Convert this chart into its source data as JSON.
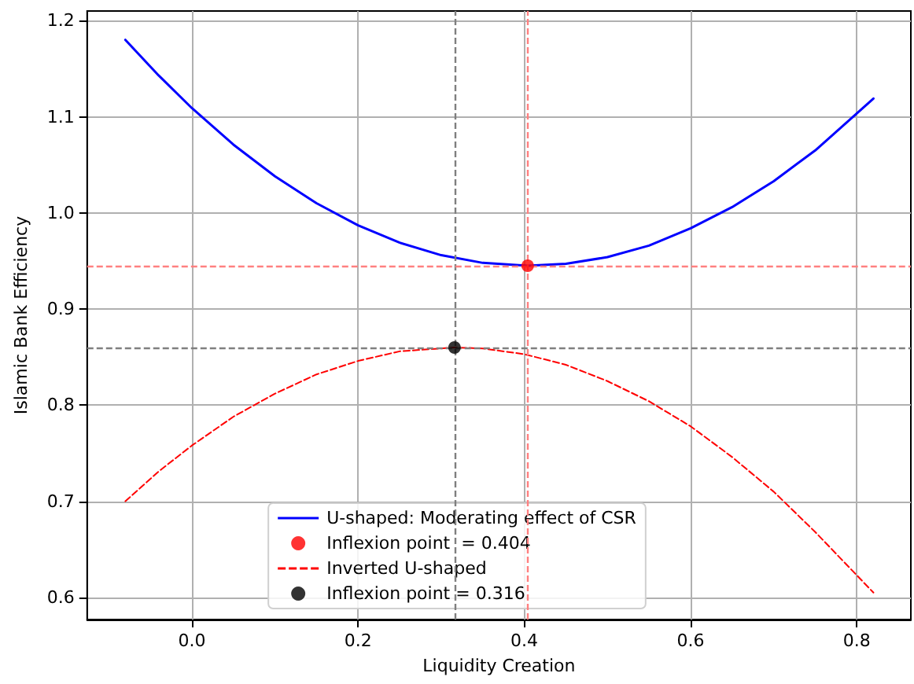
{
  "chart_data": {
    "type": "line",
    "xlabel": "Liquidity Creation",
    "ylabel": "Islamic Bank Efficiency",
    "xlim": [
      -0.126,
      0.865
    ],
    "ylim": [
      0.577,
      1.21
    ],
    "xticks": [
      {
        "value": 0,
        "label": "0.0"
      },
      {
        "value": 0.2,
        "label": "0.2"
      },
      {
        "value": 0.4,
        "label": "0.4"
      },
      {
        "value": 0.6,
        "label": "0.6"
      },
      {
        "value": 0.8,
        "label": "0.8"
      }
    ],
    "yticks": [
      {
        "value": 0.6,
        "label": "0.6"
      },
      {
        "value": 0.7,
        "label": "0.7"
      },
      {
        "value": 0.8,
        "label": "0.8"
      },
      {
        "value": 0.9,
        "label": "0.9"
      },
      {
        "value": 1.0,
        "label": "1.0"
      },
      {
        "value": 1.1,
        "label": "1.1"
      },
      {
        "value": 1.2,
        "label": "1.2"
      }
    ],
    "grid": true,
    "legend": "bottom",
    "series": [
      {
        "name": "U-shaped: Moderating effect of CSR",
        "type": "line",
        "color": "#0000ff",
        "line_style": "solid",
        "marker": "none",
        "x": [
          -0.08,
          -0.04,
          0,
          0.05,
          0.1,
          0.15,
          0.2,
          0.25,
          0.3,
          0.35,
          0.404,
          0.45,
          0.5,
          0.55,
          0.6,
          0.65,
          0.7,
          0.75,
          0.82
        ],
        "values": [
          1.18,
          1.143,
          1.109,
          1.071,
          1.038,
          1.01,
          0.987,
          0.969,
          0.956,
          0.948,
          0.945,
          0.947,
          0.954,
          0.966,
          0.984,
          1.006,
          1.033,
          1.065,
          1.119
        ]
      },
      {
        "name": "Inflexion point  = 0.404",
        "type": "scatter",
        "color": "#ff0000",
        "marker": "circle",
        "x": [
          0.404
        ],
        "values": [
          0.945
        ]
      },
      {
        "name": "Inverted U-shaped",
        "type": "line",
        "color": "#ff0000",
        "line_style": "dashed",
        "marker": "none",
        "x": [
          -0.08,
          -0.04,
          0,
          0.05,
          0.1,
          0.15,
          0.2,
          0.25,
          0.316,
          0.35,
          0.4,
          0.45,
          0.5,
          0.55,
          0.6,
          0.65,
          0.7,
          0.75,
          0.82
        ],
        "values": [
          0.7,
          0.731,
          0.758,
          0.788,
          0.812,
          0.832,
          0.846,
          0.856,
          0.86,
          0.859,
          0.853,
          0.842,
          0.825,
          0.804,
          0.778,
          0.746,
          0.71,
          0.668,
          0.605
        ]
      },
      {
        "name": "Inflexion point = 0.316",
        "type": "scatter",
        "color": "#000000",
        "marker": "circle",
        "x": [
          0.316
        ],
        "values": [
          0.86
        ]
      }
    ],
    "ref_lines": [
      {
        "axis": "x",
        "value": 0.316,
        "color": "#7f7f7f",
        "line_style": "dashed"
      },
      {
        "axis": "x",
        "value": 0.404,
        "color": "#ff8080",
        "line_style": "dashed"
      },
      {
        "axis": "y",
        "value": 0.945,
        "color": "#ff8080",
        "line_style": "dashed"
      },
      {
        "axis": "y",
        "value": 0.86,
        "color": "#7f7f7f",
        "line_style": "dashed"
      }
    ]
  }
}
